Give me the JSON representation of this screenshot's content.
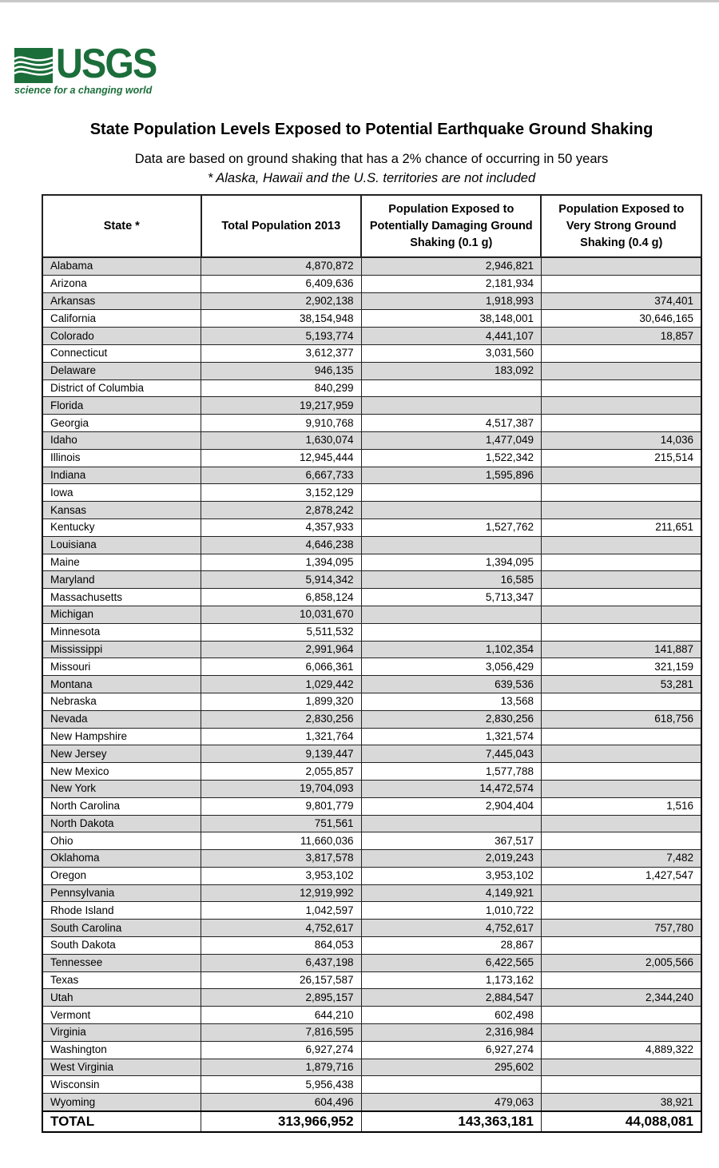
{
  "logo": {
    "text": "USGS",
    "tagline": "science for a changing world",
    "color": "#1b6e3a"
  },
  "title": "State Population Levels Exposed to Potential Earthquake Ground Shaking",
  "subtitle": "Data are based on ground shaking that has a 2% chance of occurring in 50 years",
  "note": "* Alaska, Hawaii and the U.S. territories are not included",
  "table": {
    "headers": [
      "State *",
      "Total Population 2013",
      "Population Exposed to Potentially Damaging Ground Shaking (0.1 g)",
      "Population Exposed to Very Strong Ground Shaking (0.4 g)"
    ],
    "rows": [
      [
        "Alabama",
        "4,870,872",
        "2,946,821",
        ""
      ],
      [
        "Arizona",
        "6,409,636",
        "2,181,934",
        ""
      ],
      [
        "Arkansas",
        "2,902,138",
        "1,918,993",
        "374,401"
      ],
      [
        "California",
        "38,154,948",
        "38,148,001",
        "30,646,165"
      ],
      [
        "Colorado",
        "5,193,774",
        "4,441,107",
        "18,857"
      ],
      [
        "Connecticut",
        "3,612,377",
        "3,031,560",
        ""
      ],
      [
        "Delaware",
        "946,135",
        "183,092",
        ""
      ],
      [
        "District of Columbia",
        "840,299",
        "",
        ""
      ],
      [
        "Florida",
        "19,217,959",
        "",
        ""
      ],
      [
        "Georgia",
        "9,910,768",
        "4,517,387",
        ""
      ],
      [
        "Idaho",
        "1,630,074",
        "1,477,049",
        "14,036"
      ],
      [
        "Illinois",
        "12,945,444",
        "1,522,342",
        "215,514"
      ],
      [
        "Indiana",
        "6,667,733",
        "1,595,896",
        ""
      ],
      [
        "Iowa",
        "3,152,129",
        "",
        ""
      ],
      [
        "Kansas",
        "2,878,242",
        "",
        ""
      ],
      [
        "Kentucky",
        "4,357,933",
        "1,527,762",
        "211,651"
      ],
      [
        "Louisiana",
        "4,646,238",
        "",
        ""
      ],
      [
        "Maine",
        "1,394,095",
        "1,394,095",
        ""
      ],
      [
        "Maryland",
        "5,914,342",
        "16,585",
        ""
      ],
      [
        "Massachusetts",
        "6,858,124",
        "5,713,347",
        ""
      ],
      [
        "Michigan",
        "10,031,670",
        "",
        ""
      ],
      [
        "Minnesota",
        "5,511,532",
        "",
        ""
      ],
      [
        "Mississippi",
        "2,991,964",
        "1,102,354",
        "141,887"
      ],
      [
        "Missouri",
        "6,066,361",
        "3,056,429",
        "321,159"
      ],
      [
        "Montana",
        "1,029,442",
        "639,536",
        "53,281"
      ],
      [
        "Nebraska",
        "1,899,320",
        "13,568",
        ""
      ],
      [
        "Nevada",
        "2,830,256",
        "2,830,256",
        "618,756"
      ],
      [
        "New Hampshire",
        "1,321,764",
        "1,321,574",
        ""
      ],
      [
        "New Jersey",
        "9,139,447",
        "7,445,043",
        ""
      ],
      [
        "New Mexico",
        "2,055,857",
        "1,577,788",
        ""
      ],
      [
        "New York",
        "19,704,093",
        "14,472,574",
        ""
      ],
      [
        "North Carolina",
        "9,801,779",
        "2,904,404",
        "1,516"
      ],
      [
        "North Dakota",
        "751,561",
        "",
        ""
      ],
      [
        "Ohio",
        "11,660,036",
        "367,517",
        ""
      ],
      [
        "Oklahoma",
        "3,817,578",
        "2,019,243",
        "7,482"
      ],
      [
        "Oregon",
        "3,953,102",
        "3,953,102",
        "1,427,547"
      ],
      [
        "Pennsylvania",
        "12,919,992",
        "4,149,921",
        ""
      ],
      [
        "Rhode Island",
        "1,042,597",
        "1,010,722",
        ""
      ],
      [
        "South Carolina",
        "4,752,617",
        "4,752,617",
        "757,780"
      ],
      [
        "South Dakota",
        "864,053",
        "28,867",
        ""
      ],
      [
        "Tennessee",
        "6,437,198",
        "6,422,565",
        "2,005,566"
      ],
      [
        "Texas",
        "26,157,587",
        "1,173,162",
        ""
      ],
      [
        "Utah",
        "2,895,157",
        "2,884,547",
        "2,344,240"
      ],
      [
        "Vermont",
        "644,210",
        "602,498",
        ""
      ],
      [
        "Virginia",
        "7,816,595",
        "2,316,984",
        ""
      ],
      [
        "Washington",
        "6,927,274",
        "6,927,274",
        "4,889,322"
      ],
      [
        "West Virginia",
        "1,879,716",
        "295,602",
        ""
      ],
      [
        "Wisconsin",
        "5,956,438",
        "",
        ""
      ],
      [
        "Wyoming",
        "604,496",
        "479,063",
        "38,921"
      ]
    ],
    "total": [
      "TOTAL",
      "313,966,952",
      "143,363,181",
      "44,088,081"
    ],
    "stripe_color": "#d9d9d9"
  }
}
